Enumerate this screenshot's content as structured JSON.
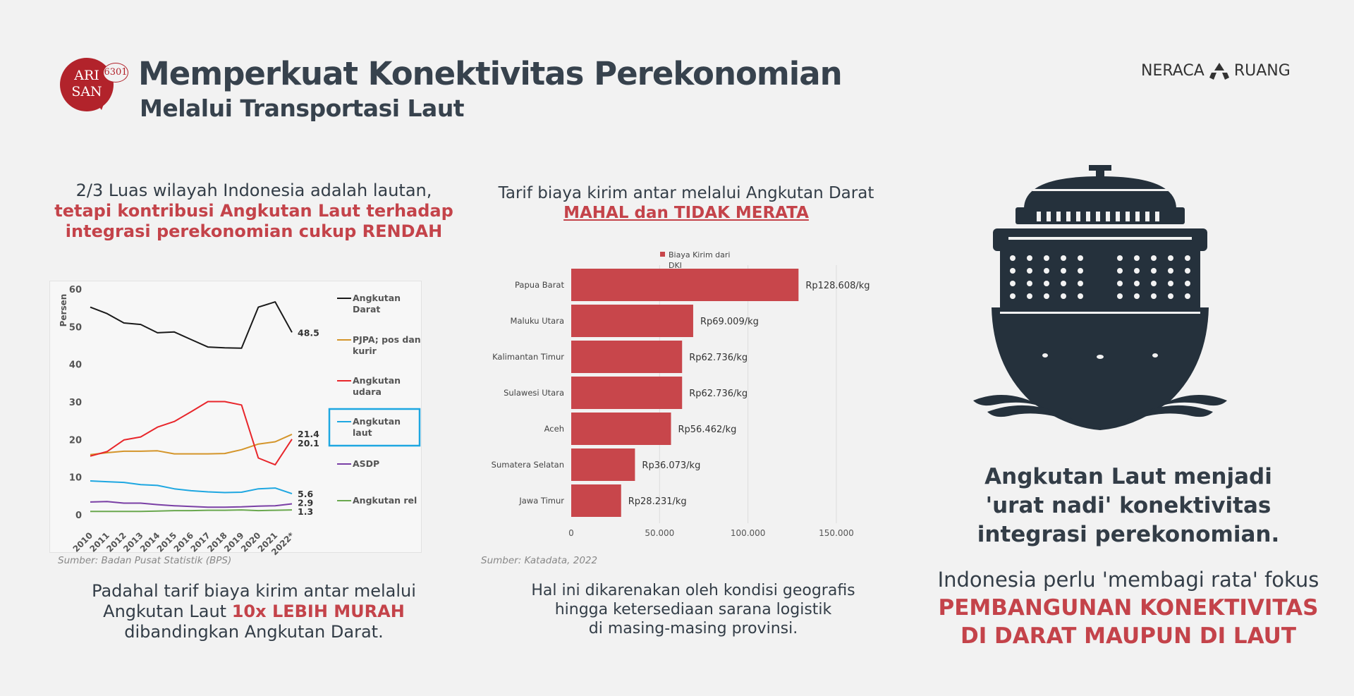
{
  "logo": {
    "line1": "ARI",
    "line2": "SAN",
    "badge": "6301"
  },
  "header": {
    "title": "Memperkuat Konektivitas Perekonomian",
    "subtitle": "Melalui Transportasi Laut"
  },
  "brand": {
    "left": "NERACA",
    "right": "RUANG",
    "icon": "recycle-icon"
  },
  "left_panel": {
    "intro_line1": "2/3 Luas wilayah Indonesia adalah lautan,",
    "intro_line2": "tetapi kontribusi Angkutan Laut terhadap",
    "intro_line3": "integrasi perekonomian cukup RENDAH",
    "source": "Sumber: Badan Pusat Statistik (BPS)",
    "bottom_line1": "Padahal tarif biaya kirim antar melalui",
    "bottom_line2a": "Angkutan Laut",
    "bottom_line2b": "10x LEBIH MURAH",
    "bottom_line3": "dibandingkan Angkutan Darat."
  },
  "middle_panel": {
    "intro_line1": "Tarif biaya kirim antar melalui Angkutan Darat",
    "intro_line2": "MAHAL dan TIDAK MERATA",
    "source": "Sumber: Katadata, 2022",
    "bottom_line1": "Hal ini dikarenakan oleh kondisi geografis",
    "bottom_line2": "hingga ketersediaan sarana logistik",
    "bottom_line3": "di masing-masing provinsi."
  },
  "right_panel": {
    "main_line1": "Angkutan Laut menjadi",
    "main_line2": "'urat nadi' konektivitas",
    "main_line3": "integrasi perekonomian.",
    "sub_line1": "Indonesia perlu 'membagi rata' fokus",
    "sub_line2": "PEMBANGUNAN KONEKTIVITAS",
    "sub_line3": "DI DARAT MAUPUN DI LAUT",
    "icon": "cruise-ship-icon"
  },
  "colors": {
    "accent_red": "#c4434a",
    "bar_red": "#c8464b",
    "highlight_blue": "#1ea7e1",
    "text_dark": "#333d47"
  },
  "chart_data": [
    {
      "type": "line",
      "ylabel": "Persen",
      "ylim": [
        0,
        60
      ],
      "yticks": [
        0,
        10,
        20,
        30,
        40,
        50,
        60
      ],
      "x": [
        "2010",
        "2011",
        "2012",
        "2013",
        "2014",
        "2015",
        "2016",
        "2017",
        "2018",
        "2019",
        "2020",
        "2021",
        "2022*"
      ],
      "legend_position": "right",
      "highlighted_series": "Angkutan laut",
      "series": [
        {
          "name_line1": "Angkutan",
          "name_line2": "Darat",
          "color": "#1a1a1a",
          "values": [
            55.2,
            53.5,
            51,
            50.6,
            48.4,
            48.6,
            46.6,
            44.6,
            44.4,
            44.3,
            55.2,
            56.6,
            48.5
          ],
          "end_label": "48.5"
        },
        {
          "name_line1": "PJPA; pos dan",
          "name_line2": "kurir",
          "color": "#d4952a",
          "values": [
            16,
            16.5,
            16.9,
            16.9,
            17,
            16.2,
            16.2,
            16.2,
            16.3,
            17.3,
            18.8,
            19.4,
            21.4
          ],
          "end_label": "21.4"
        },
        {
          "name_line1": "Angkutan",
          "name_line2": "udara",
          "color": "#e8262b",
          "values": [
            15.6,
            16.8,
            19.9,
            20.7,
            23.3,
            24.8,
            27.4,
            30.1,
            30.1,
            29.2,
            15.1,
            13.3,
            20.1
          ],
          "end_label": "20.1"
        },
        {
          "name_line1": "Angkutan",
          "name_line2": "laut",
          "color": "#1ea7e1",
          "values": [
            9,
            8.8,
            8.6,
            8,
            7.8,
            6.9,
            6.4,
            6.1,
            5.9,
            6,
            6.9,
            7.1,
            5.6
          ],
          "end_label": "5.6"
        },
        {
          "name_line1": "ASDP",
          "name_line2": "",
          "color": "#7a3fa5",
          "values": [
            3.4,
            3.5,
            3.1,
            3.1,
            2.7,
            2.4,
            2.2,
            2,
            2,
            2.1,
            2.3,
            2.4,
            2.9
          ],
          "end_label": "2.9"
        },
        {
          "name_line1": "Angkutan rel",
          "name_line2": "",
          "color": "#6aa84f",
          "values": [
            0.9,
            0.9,
            0.9,
            0.9,
            1,
            1.1,
            1.1,
            1.2,
            1.2,
            1.3,
            1.1,
            1.2,
            1.3
          ],
          "end_label": "1.3"
        }
      ]
    },
    {
      "type": "bar",
      "orientation": "horizontal",
      "legend_line1": "Biaya Kirim dari",
      "legend_line2": "DKI",
      "xlim": [
        0,
        160000
      ],
      "xticks": [
        0,
        50000,
        100000,
        150000
      ],
      "xtick_labels": [
        "0",
        "50,000",
        "100,000",
        "150,000"
      ],
      "categories": [
        "Papua Barat",
        "Maluku Utara",
        "Kalimantan Timur",
        "Sulawesi Utara",
        "Aceh",
        "Sumatera Selatan",
        "Jawa Timur"
      ],
      "values": [
        128608,
        69009,
        62736,
        62736,
        56462,
        36073,
        28231
      ],
      "data_labels": [
        "Rp128.608/kg",
        "Rp69.009/kg",
        "Rp62.736/kg",
        "Rp62.736/kg",
        "Rp56.462/kg",
        "Rp36.073/kg",
        "Rp28.231/kg"
      ]
    }
  ]
}
